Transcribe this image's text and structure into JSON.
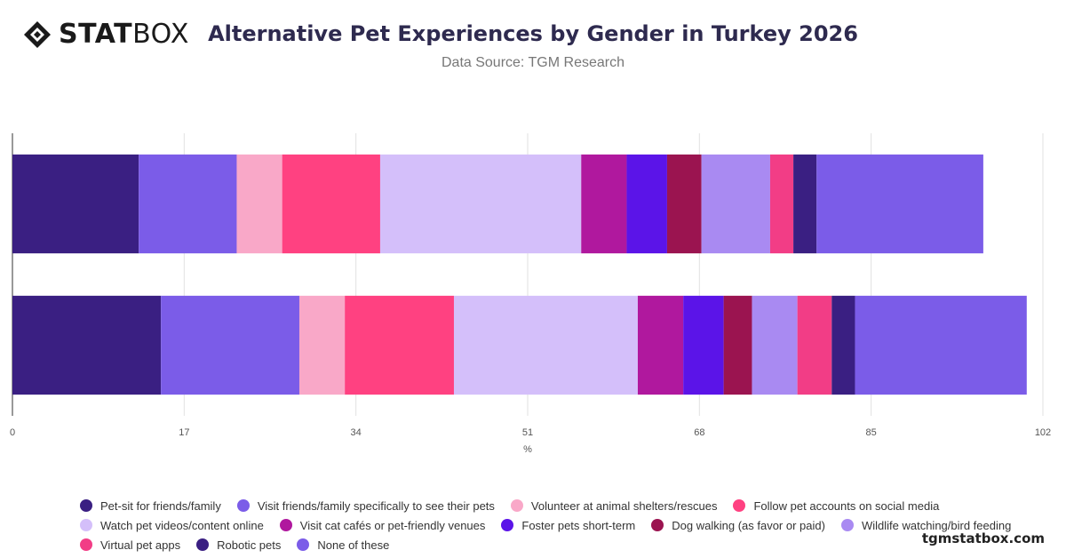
{
  "header": {
    "brand_bold": "STAT",
    "brand_light": "BOX",
    "title": "Alternative Pet Experiences by Gender in Turkey 2026",
    "subtitle": "Data Source: TGM Research"
  },
  "watermark": "tgmstatbox.com",
  "chart_data": {
    "type": "bar",
    "orientation": "horizontal",
    "stacked": true,
    "xlabel": "%",
    "xlim": [
      0,
      102
    ],
    "xticks": [
      0,
      17,
      34,
      51,
      68,
      85,
      102
    ],
    "grid": true,
    "legend_position": "bottom",
    "categories": [
      "",
      ""
    ],
    "series": [
      {
        "name": "Pet-sit for friends/family",
        "color": "#3a1f82",
        "values": [
          12.5,
          14.7
        ]
      },
      {
        "name": "Visit friends/family specifically to see their pets",
        "color": "#7b5ce8",
        "values": [
          9.7,
          13.7
        ]
      },
      {
        "name": "Volunteer at animal shelters/rescues",
        "color": "#f9a8c8",
        "values": [
          4.5,
          4.5
        ]
      },
      {
        "name": "Follow pet accounts on social media",
        "color": "#ff4181",
        "values": [
          9.7,
          10.8
        ]
      },
      {
        "name": "Watch pet videos/content online",
        "color": "#d4bffa",
        "values": [
          19.9,
          18.2
        ]
      },
      {
        "name": "Visit cat cafés or pet-friendly venues",
        "color": "#b0189e",
        "values": [
          4.5,
          4.5
        ]
      },
      {
        "name": "Foster pets short-term",
        "color": "#5b14e8",
        "values": [
          4.0,
          4.0
        ]
      },
      {
        "name": "Dog walking (as favor or paid)",
        "color": "#9b1450",
        "values": [
          3.4,
          2.8
        ]
      },
      {
        "name": "Wildlife watching/bird feeding",
        "color": "#a98af2",
        "values": [
          6.8,
          4.5
        ]
      },
      {
        "name": "Virtual pet apps",
        "color": "#f23d86",
        "values": [
          2.3,
          3.4
        ]
      },
      {
        "name": "Robotic pets",
        "color": "#3a1f82",
        "values": [
          2.3,
          2.3
        ]
      },
      {
        "name": "None of these",
        "color": "#7b5ce8",
        "values": [
          16.5,
          17.0
        ]
      }
    ]
  }
}
